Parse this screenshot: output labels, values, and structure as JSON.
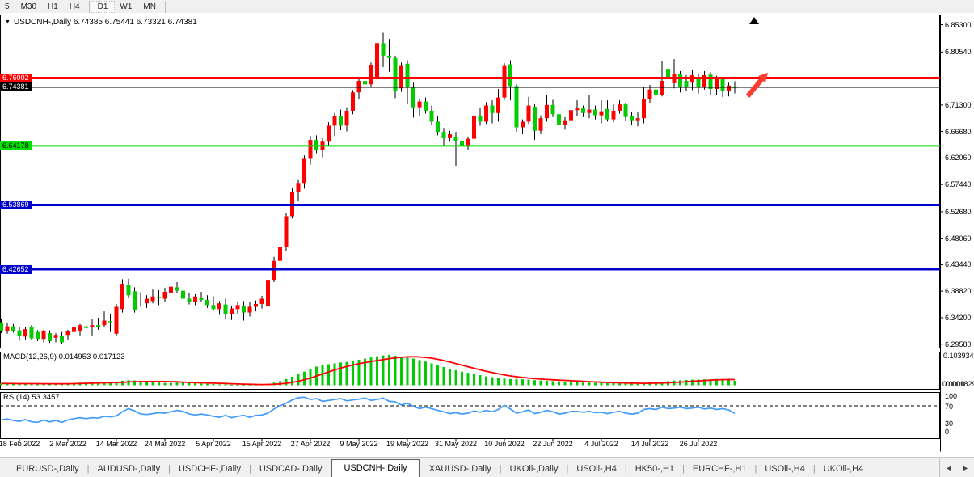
{
  "toolbar": {
    "timeframes": [
      {
        "label": "5",
        "active": false
      },
      {
        "label": "M30",
        "active": false
      },
      {
        "label": "H1",
        "active": false
      },
      {
        "label": "H4",
        "active": false,
        "sep_after": true
      },
      {
        "label": "D1",
        "active": true
      },
      {
        "label": "W1",
        "active": false
      },
      {
        "label": "MN",
        "active": false,
        "sep_after": true
      }
    ]
  },
  "chart": {
    "dropdown_glyph": "▼",
    "title_line": "USDCNH-,Daily  6.74385 6.75441 6.73321 6.74381"
  },
  "chart_data": {
    "type": "candlestick_with_indicators",
    "symbol": "USDCNH-",
    "timeframe": "Daily",
    "main": {
      "ref_price": 6.76002,
      "axis_ticks": [
        "6.85300",
        "6.80540",
        "6.71300",
        "6.66680",
        "6.62060",
        "6.57440",
        "6.52680",
        "6.48060",
        "6.43440",
        "6.38820",
        "6.34200",
        "6.29580"
      ],
      "hlines": [
        {
          "price": 6.76002,
          "label": "6.76002",
          "color": "#ff0000",
          "badge_fg": "#ffffff",
          "thickness": 3,
          "name": "resistance-line-red"
        },
        {
          "price": 6.74381,
          "label": "6.74381",
          "color": "#000000",
          "badge_fg": "#ffffff",
          "thickness": 1,
          "name": "current-price-line"
        },
        {
          "price": 6.64178,
          "label": "6.64178",
          "color": "#00dd00",
          "badge_fg": "#000000",
          "thickness": 2,
          "name": "support-line-green"
        },
        {
          "price": 6.53869,
          "label": "6.53869",
          "color": "#0000cd",
          "badge_fg": "#ffffff",
          "thickness": 3,
          "name": "support-line-blue-1"
        },
        {
          "price": 6.42652,
          "label": "6.42652",
          "color": "#0000cd",
          "badge_fg": "#ffffff",
          "thickness": 3,
          "name": "support-line-blue-2"
        }
      ],
      "candles_ohlc": [
        [
          6.334,
          6.34,
          6.315,
          6.319
        ],
        [
          6.319,
          6.332,
          6.314,
          6.327
        ],
        [
          6.327,
          6.331,
          6.316,
          6.318
        ],
        [
          6.32,
          6.325,
          6.302,
          6.31
        ],
        [
          6.309,
          6.325,
          6.304,
          6.322
        ],
        [
          6.325,
          6.329,
          6.303,
          6.306
        ],
        [
          6.317,
          6.32,
          6.301,
          6.305
        ],
        [
          6.305,
          6.321,
          6.299,
          6.318
        ],
        [
          6.315,
          6.32,
          6.298,
          6.301
        ],
        [
          6.307,
          6.315,
          6.299,
          6.312
        ],
        [
          6.31,
          6.317,
          6.296,
          6.299
        ],
        [
          6.312,
          6.321,
          6.304,
          6.319
        ],
        [
          6.317,
          6.329,
          6.307,
          6.325
        ],
        [
          6.319,
          6.331,
          6.311,
          6.329
        ],
        [
          6.327,
          6.347,
          6.319,
          6.324
        ],
        [
          6.325,
          6.339,
          6.311,
          6.329
        ],
        [
          6.329,
          6.342,
          6.321,
          6.326
        ],
        [
          6.329,
          6.353,
          6.325,
          6.337
        ],
        [
          6.336,
          6.349,
          6.317,
          6.334
        ],
        [
          6.314,
          6.366,
          6.31,
          6.361
        ],
        [
          6.357,
          6.409,
          6.351,
          6.401
        ],
        [
          6.399,
          6.41,
          6.377,
          6.381
        ],
        [
          6.388,
          6.395,
          6.351,
          6.355
        ],
        [
          6.369,
          6.386,
          6.361,
          6.37
        ],
        [
          6.367,
          6.381,
          6.359,
          6.375
        ],
        [
          6.371,
          6.391,
          6.367,
          6.379
        ],
        [
          6.378,
          6.39,
          6.364,
          6.377
        ],
        [
          6.375,
          6.394,
          6.369,
          6.387
        ],
        [
          6.385,
          6.403,
          6.377,
          6.396
        ],
        [
          6.395,
          6.404,
          6.385,
          6.389
        ],
        [
          6.389,
          6.395,
          6.371,
          6.375
        ],
        [
          6.375,
          6.385,
          6.365,
          6.369
        ],
        [
          6.37,
          6.383,
          6.364,
          6.379
        ],
        [
          6.377,
          6.387,
          6.369,
          6.373
        ],
        [
          6.373,
          6.381,
          6.359,
          6.364
        ],
        [
          6.364,
          6.379,
          6.354,
          6.357
        ],
        [
          6.357,
          6.371,
          6.347,
          6.367
        ],
        [
          6.365,
          6.375,
          6.339,
          6.349
        ],
        [
          6.349,
          6.362,
          6.338,
          6.358
        ],
        [
          6.357,
          6.369,
          6.349,
          6.364
        ],
        [
          6.363,
          6.371,
          6.337,
          6.351
        ],
        [
          6.351,
          6.369,
          6.344,
          6.361
        ],
        [
          6.361,
          6.372,
          6.353,
          6.366
        ],
        [
          6.366,
          6.38,
          6.358,
          6.375
        ],
        [
          6.362,
          6.413,
          6.358,
          6.408
        ],
        [
          6.408,
          6.448,
          6.404,
          6.441
        ],
        [
          6.441,
          6.474,
          6.434,
          6.466
        ],
        [
          6.466,
          6.524,
          6.459,
          6.519
        ],
        [
          6.519,
          6.569,
          6.515,
          6.562
        ],
        [
          6.562,
          6.582,
          6.545,
          6.577
        ],
        [
          6.577,
          6.625,
          6.567,
          6.619
        ],
        [
          6.619,
          6.659,
          6.609,
          6.652
        ],
        [
          6.652,
          6.66,
          6.629,
          6.635
        ],
        [
          6.635,
          6.655,
          6.622,
          6.649
        ],
        [
          6.649,
          6.683,
          6.642,
          6.677
        ],
        [
          6.677,
          6.699,
          6.659,
          6.693
        ],
        [
          6.693,
          6.705,
          6.669,
          6.677
        ],
        [
          6.677,
          6.709,
          6.667,
          6.703
        ],
        [
          6.703,
          6.739,
          6.697,
          6.735
        ],
        [
          6.735,
          6.759,
          6.723,
          6.755
        ],
        [
          6.755,
          6.769,
          6.737,
          6.749
        ],
        [
          6.749,
          6.787,
          6.745,
          6.782
        ],
        [
          6.758,
          6.831,
          6.752,
          6.821
        ],
        [
          6.821,
          6.839,
          6.779,
          6.799
        ],
        [
          6.799,
          6.828,
          6.771,
          6.795
        ],
        [
          6.795,
          6.799,
          6.725,
          6.738
        ],
        [
          6.742,
          6.787,
          6.736,
          6.781
        ],
        [
          6.785,
          6.791,
          6.714,
          6.743
        ],
        [
          6.743,
          6.752,
          6.691,
          6.709
        ],
        [
          6.709,
          6.724,
          6.693,
          6.719
        ],
        [
          6.719,
          6.726,
          6.698,
          6.703
        ],
        [
          6.703,
          6.712,
          6.678,
          6.684
        ],
        [
          6.684,
          6.694,
          6.66,
          6.666
        ],
        [
          6.666,
          6.673,
          6.641,
          6.655
        ],
        [
          6.655,
          6.668,
          6.649,
          6.662
        ],
        [
          6.658,
          6.666,
          6.607,
          6.65
        ],
        [
          6.65,
          6.662,
          6.622,
          6.641
        ],
        [
          6.641,
          6.658,
          6.635,
          6.654
        ],
        [
          6.654,
          6.7,
          6.648,
          6.693
        ],
        [
          6.693,
          6.707,
          6.677,
          6.684
        ],
        [
          6.684,
          6.718,
          6.68,
          6.712
        ],
        [
          6.712,
          6.721,
          6.681,
          6.699
        ],
        [
          6.699,
          6.741,
          6.684,
          6.726
        ],
        [
          6.726,
          6.786,
          6.722,
          6.781
        ],
        [
          6.784,
          6.791,
          6.721,
          6.746
        ],
        [
          6.746,
          6.749,
          6.666,
          6.674
        ],
        [
          6.674,
          6.688,
          6.662,
          6.684
        ],
        [
          6.684,
          6.727,
          6.68,
          6.712
        ],
        [
          6.71,
          6.714,
          6.652,
          6.668
        ],
        [
          6.668,
          6.695,
          6.662,
          6.69
        ],
        [
          6.69,
          6.731,
          6.684,
          6.713
        ],
        [
          6.713,
          6.722,
          6.692,
          6.697
        ],
        [
          6.697,
          6.702,
          6.666,
          6.679
        ],
        [
          6.679,
          6.692,
          6.67,
          6.685
        ],
        [
          6.685,
          6.717,
          6.678,
          6.704
        ],
        [
          6.704,
          6.721,
          6.693,
          6.707
        ],
        [
          6.707,
          6.712,
          6.692,
          6.699
        ],
        [
          6.699,
          6.731,
          6.69,
          6.705
        ],
        [
          6.705,
          6.712,
          6.688,
          6.695
        ],
        [
          6.695,
          6.721,
          6.681,
          6.702
        ],
        [
          6.706,
          6.721,
          6.684,
          6.688
        ],
        [
          6.688,
          6.714,
          6.683,
          6.703
        ],
        [
          6.703,
          6.721,
          6.698,
          6.714
        ],
        [
          6.714,
          6.717,
          6.685,
          6.692
        ],
        [
          6.694,
          6.701,
          6.678,
          6.685
        ],
        [
          6.685,
          6.7,
          6.676,
          6.69
        ],
        [
          6.69,
          6.745,
          6.681,
          6.723
        ],
        [
          6.723,
          6.748,
          6.716,
          6.74
        ],
        [
          6.74,
          6.758,
          6.727,
          6.731
        ],
        [
          6.731,
          6.79,
          6.728,
          6.755
        ],
        [
          6.776,
          6.788,
          6.745,
          6.759
        ],
        [
          6.751,
          6.793,
          6.742,
          6.767
        ],
        [
          6.767,
          6.772,
          6.735,
          6.745
        ],
        [
          6.755,
          6.765,
          6.738,
          6.745
        ],
        [
          6.752,
          6.775,
          6.739,
          6.765
        ],
        [
          6.762,
          6.768,
          6.733,
          6.744
        ],
        [
          6.744,
          6.772,
          6.74,
          6.765
        ],
        [
          6.766,
          6.77,
          6.73,
          6.741
        ],
        [
          6.741,
          6.764,
          6.731,
          6.758
        ],
        [
          6.758,
          6.762,
          6.727,
          6.737
        ],
        [
          6.737,
          6.752,
          6.728,
          6.747
        ],
        [
          6.74385,
          6.75441,
          6.73321,
          6.74381
        ]
      ],
      "up_color": "#ff0000",
      "down_color": "#00cc00",
      "wick_color": "#000000",
      "objects": {
        "arrow_color": "#ff3b30",
        "marker_color": "#000000"
      }
    },
    "macd": {
      "label": "MACD(12,26,9) 0.014953 0.017123",
      "scale_top": "0.103934",
      "scale_zero": "0.001829",
      "scale_zero_ghost": "0.0000",
      "hist_color": "#00cc00",
      "signal_color": "#ff0000",
      "hist": [
        0.006,
        0.006,
        0.005,
        0.005,
        0.005,
        0.006,
        0.005,
        0.004,
        0.004,
        0.005,
        0.006,
        0.007,
        0.008,
        0.009,
        0.01,
        0.01,
        0.009,
        0.009,
        0.01,
        0.012,
        0.015,
        0.017,
        0.016,
        0.014,
        0.012,
        0.01,
        0.009,
        0.008,
        0.008,
        0.009,
        0.009,
        0.008,
        0.007,
        0.006,
        0.005,
        0.004,
        0.003,
        0.003,
        0.002,
        0.002,
        0.002,
        0.002,
        0.002,
        0.003,
        0.005,
        0.009,
        0.014,
        0.021,
        0.029,
        0.038,
        0.046,
        0.055,
        0.063,
        0.068,
        0.071,
        0.074,
        0.077,
        0.079,
        0.082,
        0.086,
        0.09,
        0.094,
        0.098,
        0.101,
        0.103,
        0.1,
        0.097,
        0.094,
        0.09,
        0.085,
        0.08,
        0.074,
        0.068,
        0.062,
        0.056,
        0.051,
        0.046,
        0.042,
        0.038,
        0.034,
        0.03,
        0.027,
        0.024,
        0.022,
        0.021,
        0.021,
        0.02,
        0.019,
        0.017,
        0.016,
        0.015,
        0.014,
        0.013,
        0.012,
        0.011,
        0.01,
        0.009,
        0.009,
        0.008,
        0.008,
        0.007,
        0.007,
        0.006,
        0.006,
        0.006,
        0.005,
        0.007,
        0.009,
        0.01,
        0.012,
        0.014,
        0.016,
        0.017,
        0.018,
        0.019,
        0.019,
        0.02,
        0.02,
        0.021,
        0.021,
        0.02,
        0.015
      ]
    },
    "rsi": {
      "label": "RSI(14) 53.3457",
      "line_color": "#3f9bfc",
      "levels": [
        70,
        30
      ],
      "scale_labels": [
        "100",
        "70",
        "30",
        "0"
      ],
      "values": [
        39,
        41,
        38,
        36,
        40,
        35,
        34,
        39,
        35,
        38,
        34,
        39,
        42,
        44,
        42,
        44,
        43,
        47,
        46,
        48,
        57,
        64,
        59,
        52,
        51,
        53,
        55,
        54,
        57,
        60,
        58,
        52,
        50,
        52,
        50,
        47,
        45,
        49,
        44,
        47,
        49,
        45,
        49,
        50,
        54,
        63,
        70,
        76,
        83,
        88,
        89,
        84,
        86,
        80,
        82,
        84,
        86,
        81,
        83,
        85,
        87,
        82,
        84,
        87,
        80,
        79,
        72,
        76,
        69,
        64,
        67,
        64,
        60,
        57,
        53,
        55,
        52,
        54,
        59,
        56,
        60,
        57,
        62,
        71,
        63,
        54,
        57,
        61,
        53,
        56,
        60,
        57,
        52,
        54,
        58,
        58,
        56,
        58,
        55,
        56,
        53,
        56,
        58,
        54,
        52,
        54,
        62,
        64,
        62,
        67,
        64,
        65,
        67,
        64,
        65,
        67,
        63,
        65,
        62,
        64,
        61,
        53.3
      ]
    },
    "x_axis": {
      "labels": [
        "18 Feb 2022",
        "2 Mar 2022",
        "14 Mar 2022",
        "24 Mar 2022",
        "5 Apr 2022",
        "15 Apr 2022",
        "27 Apr 2022",
        "9 May 2022",
        "19 May 2022",
        "31 May 2022",
        "10 Jun 2022",
        "22 Jun 2022",
        "4 Jul 2022",
        "14 Jul 2022",
        "26 Jul 2022"
      ],
      "label_every_n_bars": 8,
      "first_label_bar_index": 3
    }
  },
  "tabs": {
    "separator": "|",
    "items": [
      {
        "label": "EURUSD-,Daily",
        "active": false
      },
      {
        "label": "AUDUSD-,Daily",
        "active": false
      },
      {
        "label": "USDCHF-,Daily",
        "active": false
      },
      {
        "label": "USDCAD-,Daily",
        "active": false
      },
      {
        "label": "USDCNH-,Daily",
        "active": true
      },
      {
        "label": "XAUUSD-,Daily",
        "active": false
      },
      {
        "label": "UKOil-,Daily",
        "active": false
      },
      {
        "label": "USOil-,H4",
        "active": false
      },
      {
        "label": "HK50-,H1",
        "active": false
      },
      {
        "label": "EURCHF-,H1",
        "active": false
      },
      {
        "label": "USOil-,H4",
        "active": false
      },
      {
        "label": "UKOil-,H4",
        "active": false
      }
    ],
    "nav_left": "◄",
    "nav_right": "►"
  }
}
